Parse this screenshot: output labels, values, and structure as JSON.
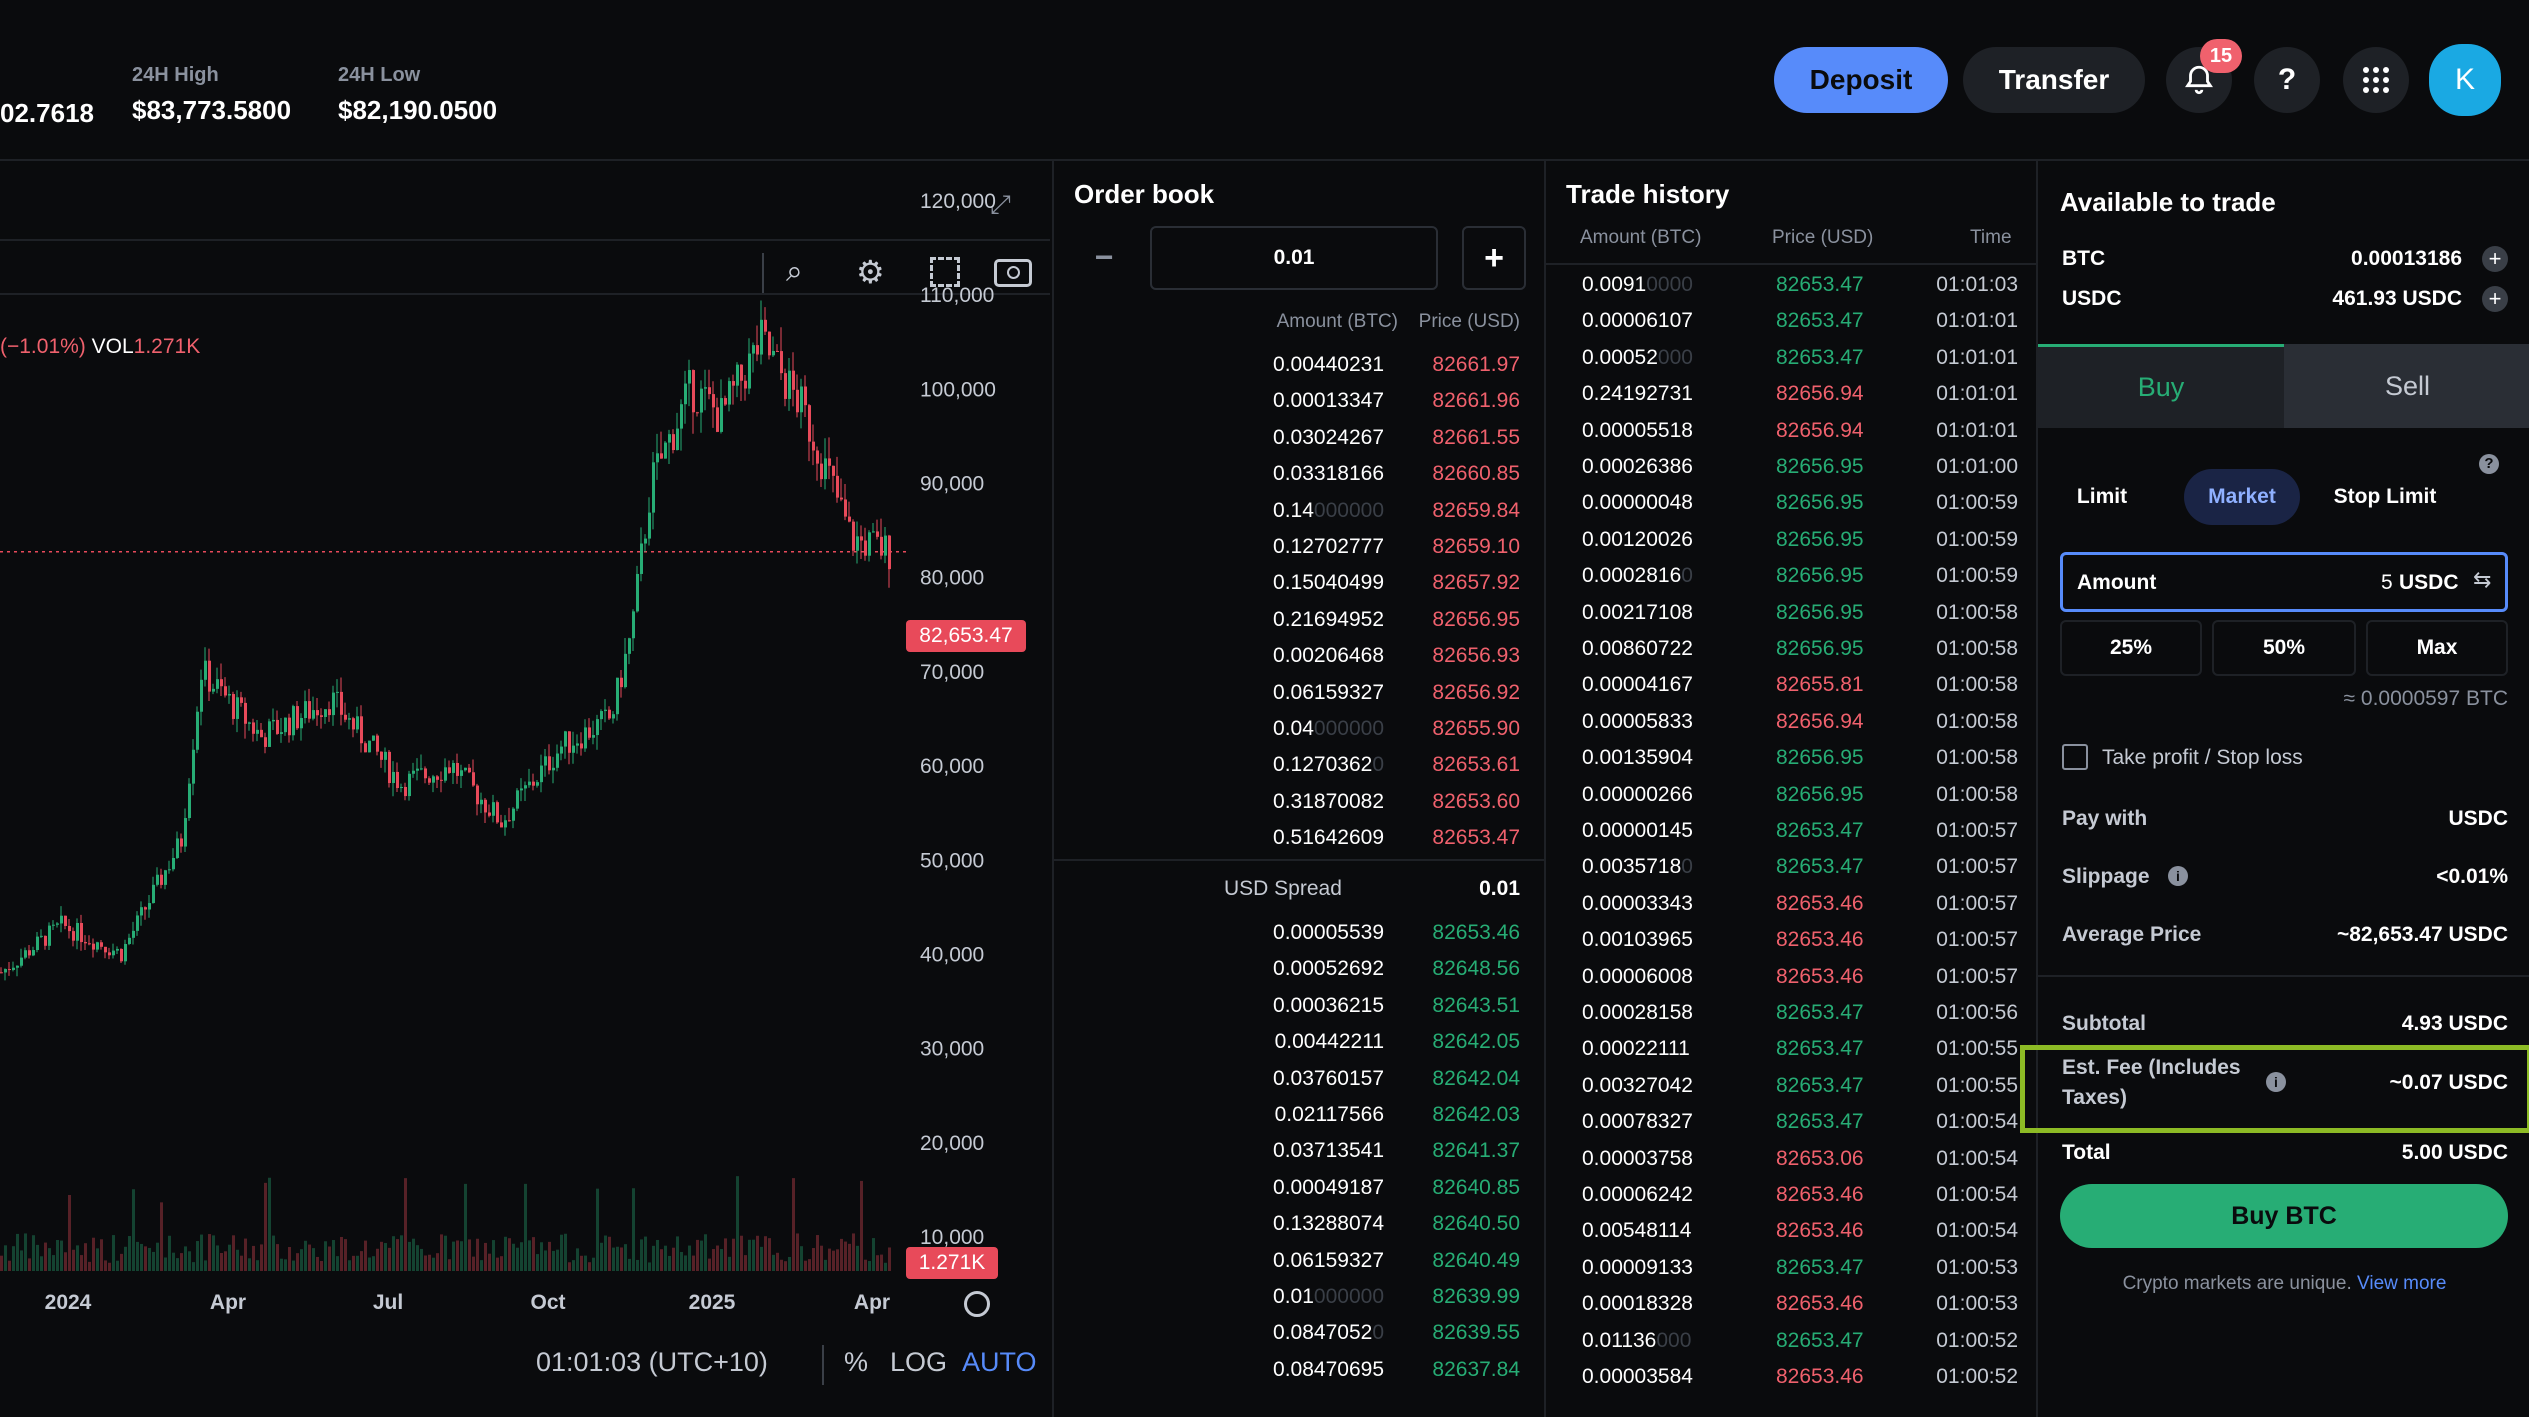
{
  "header": {
    "price_partial": "02.7618",
    "high_label": "24H High",
    "high_value": "$83,773.5800",
    "low_label": "24H Low",
    "low_value": "$82,190.0500",
    "deposit": "Deposit",
    "transfer": "Transfer",
    "notif_count": "15",
    "help": "?",
    "avatar": "K"
  },
  "chart": {
    "change": "(−1.01%)",
    "vol_label": "VOL",
    "vol_value": "1.271K",
    "price_tag": "82,653.47",
    "vol_tag": "1.271K",
    "y_ticks": [
      "120,000",
      "110,000",
      "100,000",
      "90,000",
      "80,000",
      "70,000",
      "60,000",
      "50,000",
      "40,000",
      "30,000",
      "20,000",
      "10,000"
    ],
    "x_ticks": [
      "2024",
      "Apr",
      "Jul",
      "Oct",
      "2025",
      "Apr"
    ],
    "time": "01:01:03 (UTC+10)",
    "pct": "%",
    "log": "LOG",
    "auto": "AUTO"
  },
  "orderbook": {
    "title": "Order book",
    "step": "0.01",
    "col_amount": "Amount (BTC)",
    "col_price": "Price (USD)",
    "asks": [
      [
        "0.00440231",
        "",
        "82661.97"
      ],
      [
        "0.00013347",
        "",
        "82661.96"
      ],
      [
        "0.03024267",
        "",
        "82661.55"
      ],
      [
        "0.03318166",
        "",
        "82660.85"
      ],
      [
        "0.14",
        "000000",
        "82659.84"
      ],
      [
        "0.12702777",
        "",
        "82659.10"
      ],
      [
        "0.15040499",
        "",
        "82657.92"
      ],
      [
        "0.21694952",
        "",
        "82656.95"
      ],
      [
        "0.00206468",
        "",
        "82656.93"
      ],
      [
        "0.06159327",
        "",
        "82656.92"
      ],
      [
        "0.04",
        "000000",
        "82655.90"
      ],
      [
        "0.1270362",
        "0",
        "82653.61"
      ],
      [
        "0.31870082",
        "",
        "82653.60"
      ],
      [
        "0.51642609",
        "",
        "82653.47"
      ]
    ],
    "spread_label": "USD Spread",
    "spread_value": "0.01",
    "bids": [
      [
        "0.00005539",
        "",
        "82653.46"
      ],
      [
        "0.00052692",
        "",
        "82648.56"
      ],
      [
        "0.00036215",
        "",
        "82643.51"
      ],
      [
        "0.00442211",
        "",
        "82642.05"
      ],
      [
        "0.03760157",
        "",
        "82642.04"
      ],
      [
        "0.02117566",
        "",
        "82642.03"
      ],
      [
        "0.03713541",
        "",
        "82641.37"
      ],
      [
        "0.00049187",
        "",
        "82640.85"
      ],
      [
        "0.13288074",
        "",
        "82640.50"
      ],
      [
        "0.06159327",
        "",
        "82640.49"
      ],
      [
        "0.01",
        "000000",
        "82639.99"
      ],
      [
        "0.0847052",
        "0",
        "82639.55"
      ],
      [
        "0.08470695",
        "",
        "82637.84"
      ]
    ]
  },
  "trades": {
    "title": "Trade history",
    "col_amount": "Amount (BTC)",
    "col_price": "Price (USD)",
    "col_time": "Time",
    "rows": [
      [
        "0.0091",
        "0000",
        "82653.47",
        "g",
        "01:01:03"
      ],
      [
        "0.00006107",
        "",
        "82653.47",
        "g",
        "01:01:01"
      ],
      [
        "0.00052",
        "000",
        "82653.47",
        "g",
        "01:01:01"
      ],
      [
        "0.24192731",
        "",
        "82656.94",
        "r",
        "01:01:01"
      ],
      [
        "0.00005518",
        "",
        "82656.94",
        "r",
        "01:01:01"
      ],
      [
        "0.00026386",
        "",
        "82656.95",
        "g",
        "01:01:00"
      ],
      [
        "0.00000048",
        "",
        "82656.95",
        "g",
        "01:00:59"
      ],
      [
        "0.00120026",
        "",
        "82656.95",
        "g",
        "01:00:59"
      ],
      [
        "0.0002816",
        "0",
        "82656.95",
        "g",
        "01:00:59"
      ],
      [
        "0.00217108",
        "",
        "82656.95",
        "g",
        "01:00:58"
      ],
      [
        "0.00860722",
        "",
        "82656.95",
        "g",
        "01:00:58"
      ],
      [
        "0.00004167",
        "",
        "82655.81",
        "r",
        "01:00:58"
      ],
      [
        "0.00005833",
        "",
        "82656.94",
        "r",
        "01:00:58"
      ],
      [
        "0.00135904",
        "",
        "82656.95",
        "g",
        "01:00:58"
      ],
      [
        "0.00000266",
        "",
        "82656.95",
        "g",
        "01:00:58"
      ],
      [
        "0.00000145",
        "",
        "82653.47",
        "g",
        "01:00:57"
      ],
      [
        "0.0035718",
        "0",
        "82653.47",
        "g",
        "01:00:57"
      ],
      [
        "0.00003343",
        "",
        "82653.46",
        "r",
        "01:00:57"
      ],
      [
        "0.00103965",
        "",
        "82653.46",
        "r",
        "01:00:57"
      ],
      [
        "0.00006008",
        "",
        "82653.46",
        "r",
        "01:00:57"
      ],
      [
        "0.00028158",
        "",
        "82653.47",
        "g",
        "01:00:56"
      ],
      [
        "0.00022111",
        "",
        "82653.47",
        "g",
        "01:00:55"
      ],
      [
        "0.00327042",
        "",
        "82653.47",
        "g",
        "01:00:55"
      ],
      [
        "0.00078327",
        "",
        "82653.47",
        "g",
        "01:00:54"
      ],
      [
        "0.00003758",
        "",
        "82653.06",
        "r",
        "01:00:54"
      ],
      [
        "0.00006242",
        "",
        "82653.46",
        "r",
        "01:00:54"
      ],
      [
        "0.00548114",
        "",
        "82653.46",
        "r",
        "01:00:54"
      ],
      [
        "0.00009133",
        "",
        "82653.47",
        "g",
        "01:00:53"
      ],
      [
        "0.00018328",
        "",
        "82653.46",
        "r",
        "01:00:53"
      ],
      [
        "0.01136",
        "000",
        "82653.47",
        "g",
        "01:00:52"
      ],
      [
        "0.00003584",
        "",
        "82653.46",
        "r",
        "01:00:52"
      ]
    ]
  },
  "trade": {
    "title": "Available to trade",
    "btc_label": "BTC",
    "btc_value": "0.00013186",
    "usdc_label": "USDC",
    "usdc_value": "461.93 USDC",
    "buy_tab": "Buy",
    "sell_tab": "Sell",
    "limit": "Limit",
    "market": "Market",
    "stop_limit": "Stop Limit",
    "amount_label": "Amount",
    "amount_value": "5",
    "amount_unit": "USDC",
    "p25": "25%",
    "p50": "50%",
    "max": "Max",
    "approx": "≈ 0.0000597 BTC",
    "tpsl": "Take profit / Stop loss",
    "pay_with_label": "Pay with",
    "pay_with_value": "USDC",
    "slippage_label": "Slippage",
    "slippage_value": "<0.01%",
    "avg_label": "Average Price",
    "avg_value": "~82,653.47 USDC",
    "subtotal_label": "Subtotal",
    "subtotal_value": "4.93 USDC",
    "fee_label_1": "Est. Fee (Includes",
    "fee_label_2": "Taxes)",
    "fee_value": "~0.07 USDC",
    "total_label": "Total",
    "total_value": "5.00 USDC",
    "buy_button": "Buy BTC",
    "disclaimer": "Crypto markets are unique.",
    "view_more": "View more"
  },
  "colors": {
    "accent": "#578bfa",
    "buy_green": "#27ad75",
    "ask_red": "#f0616d",
    "highlight": "#8dbb25",
    "avatar": "#1aa9e3"
  }
}
